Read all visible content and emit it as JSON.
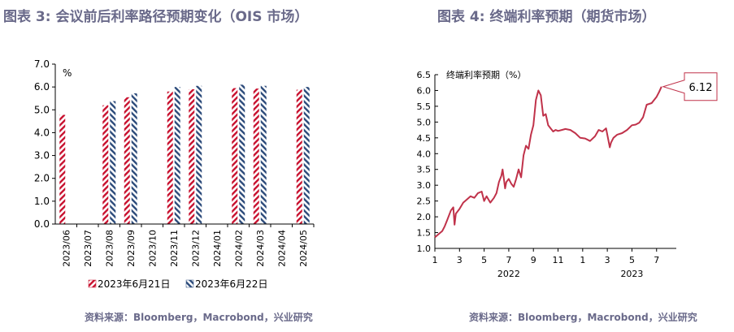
{
  "left": {
    "title": "图表 3: 会议前后利率路径预期变化（OIS 市场）",
    "source": "资料来源：Bloomberg，Macrobond，兴业研究"
  },
  "right": {
    "title": "图表 4: 终端利率预期（期货市场）",
    "source": "资料来源：Bloomberg，Macrobond，兴业研究"
  },
  "colors": {
    "series1": "#c8102e",
    "series2": "#2b4a7a",
    "line": "#c0324a",
    "title": "#6a6a8a"
  },
  "chart_data": [
    {
      "type": "bar",
      "unit_label": "%",
      "categories": [
        "2023/06",
        "2023/07",
        "2023/08",
        "2023/09",
        "2023/10",
        "2023/11",
        "2023/12",
        "2024/01",
        "2024/02",
        "2024/03",
        "2024/04",
        "2024/05"
      ],
      "series": [
        {
          "name": "2023年6月21日",
          "values": [
            4.78,
            null,
            5.2,
            5.55,
            null,
            5.8,
            5.9,
            null,
            5.95,
            5.93,
            null,
            5.88
          ]
        },
        {
          "name": "2023年6月22日",
          "values": [
            null,
            null,
            5.38,
            5.72,
            null,
            6.0,
            6.05,
            null,
            6.1,
            6.05,
            null,
            6.0
          ]
        }
      ],
      "ylim": [
        0,
        7
      ],
      "yticks": [
        "0.0",
        "1.0",
        "2.0",
        "3.0",
        "4.0",
        "5.0",
        "6.0",
        "7.0"
      ],
      "legend_position": "bottom"
    },
    {
      "type": "line",
      "inner_title": "终端利率预期（%）",
      "callout": "6.12",
      "ylim": [
        1.0,
        6.5
      ],
      "yticks": [
        "1.0",
        "1.5",
        "2.0",
        "2.5",
        "3.0",
        "3.5",
        "4.0",
        "4.5",
        "5.0",
        "5.5",
        "6.0",
        "6.5"
      ],
      "xticks": [
        "1",
        "3",
        "5",
        "7",
        "9",
        "11",
        "1",
        "3",
        "5",
        "7"
      ],
      "year_labels": [
        "2022",
        "2023"
      ],
      "x_months": [
        1,
        1.3,
        1.6,
        1.8,
        2.0,
        2.3,
        2.5,
        2.6,
        2.7,
        3.0,
        3.3,
        3.6,
        3.9,
        4.2,
        4.5,
        4.8,
        5.0,
        5.2,
        5.5,
        5.8,
        6.0,
        6.2,
        6.4,
        6.5,
        6.6,
        6.7,
        6.8,
        7.0,
        7.2,
        7.4,
        7.6,
        7.8,
        8.0,
        8.2,
        8.4,
        8.6,
        8.8,
        9.0,
        9.2,
        9.4,
        9.6,
        9.8,
        10.0,
        10.2,
        10.4,
        10.6,
        10.8,
        11.0,
        11.3,
        11.6,
        12.0,
        12.4,
        12.8,
        13.2,
        13.6,
        14.0,
        14.3,
        14.6,
        14.9,
        15.2,
        15.3,
        15.5,
        15.8,
        16.2,
        16.6,
        17.0,
        17.3,
        17.6,
        17.9,
        18.2,
        18.6,
        19.0,
        19.2,
        19.4
      ],
      "values": [
        1.35,
        1.45,
        1.55,
        1.7,
        1.9,
        2.2,
        2.3,
        1.75,
        2.1,
        2.25,
        2.45,
        2.55,
        2.65,
        2.6,
        2.75,
        2.8,
        2.5,
        2.65,
        2.45,
        2.6,
        2.75,
        3.1,
        3.3,
        3.5,
        3.2,
        2.9,
        3.1,
        3.2,
        3.05,
        2.95,
        3.2,
        3.5,
        3.25,
        3.95,
        4.25,
        4.15,
        4.6,
        4.9,
        5.7,
        6.0,
        5.85,
        5.2,
        5.25,
        4.9,
        4.8,
        4.7,
        4.75,
        4.72,
        4.75,
        4.78,
        4.75,
        4.65,
        4.5,
        4.48,
        4.4,
        4.55,
        4.75,
        4.7,
        4.8,
        4.2,
        4.35,
        4.5,
        4.6,
        4.65,
        4.75,
        4.9,
        4.92,
        4.98,
        5.15,
        5.55,
        5.6,
        5.8,
        5.95,
        6.12
      ]
    }
  ]
}
